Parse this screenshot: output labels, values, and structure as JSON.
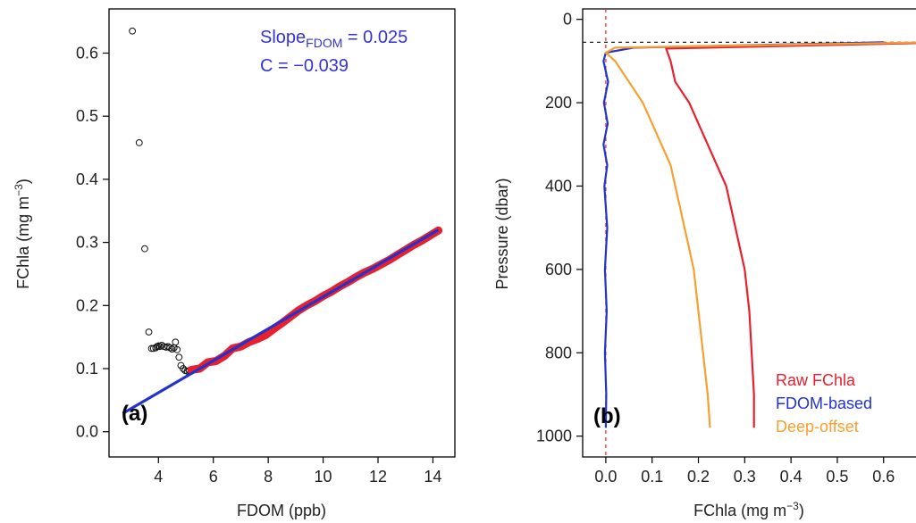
{
  "chart_data": [
    {
      "panel_label": "(a)",
      "type": "scatter",
      "xlabel": "FDOM (ppb)",
      "ylabel": "FChla (mg m",
      "ylabel_sup": "−3",
      "ylabel_close": ")",
      "xlim": [
        2.2,
        14.8
      ],
      "ylim": [
        -0.04,
        0.67
      ],
      "xticks": [
        4,
        6,
        8,
        10,
        12,
        14
      ],
      "xtick_labels": [
        "4",
        "6",
        "8",
        "10",
        "12",
        "14"
      ],
      "yticks": [
        0.0,
        0.1,
        0.2,
        0.3,
        0.4,
        0.5,
        0.6
      ],
      "ytick_labels": [
        "0.0",
        "0.1",
        "0.2",
        "0.3",
        "0.4",
        "0.5",
        "0.6"
      ],
      "annotation_slope_main": "Slope",
      "annotation_slope_sub": "FDOM",
      "annotation_slope_value": " = 0.025",
      "annotation_c": "C = −0.039",
      "annotation_color": "#3333dd",
      "open_points": [
        [
          3.05,
          0.635
        ],
        [
          3.3,
          0.458
        ],
        [
          3.5,
          0.29
        ],
        [
          3.65,
          0.158
        ],
        [
          3.75,
          0.132
        ],
        [
          3.82,
          0.132
        ],
        [
          3.9,
          0.133
        ],
        [
          3.95,
          0.135
        ],
        [
          4.0,
          0.136
        ],
        [
          4.05,
          0.135
        ],
        [
          4.12,
          0.137
        ],
        [
          4.2,
          0.135
        ],
        [
          4.28,
          0.134
        ],
        [
          4.35,
          0.135
        ],
        [
          4.42,
          0.133
        ],
        [
          4.5,
          0.131
        ],
        [
          4.57,
          0.133
        ],
        [
          4.62,
          0.142
        ],
        [
          4.68,
          0.13
        ],
        [
          4.75,
          0.118
        ],
        [
          4.82,
          0.105
        ],
        [
          4.9,
          0.1
        ],
        [
          4.97,
          0.097
        ],
        [
          5.05,
          0.096
        ],
        [
          5.12,
          0.097
        ],
        [
          5.2,
          0.096
        ],
        [
          5.3,
          0.099
        ]
      ],
      "red_series": [
        [
          5.2,
          0.098
        ],
        [
          5.5,
          0.1
        ],
        [
          5.8,
          0.11
        ],
        [
          6.1,
          0.112
        ],
        [
          6.4,
          0.12
        ],
        [
          6.7,
          0.132
        ],
        [
          7.0,
          0.135
        ],
        [
          7.3,
          0.142
        ],
        [
          7.6,
          0.147
        ],
        [
          7.9,
          0.153
        ],
        [
          8.2,
          0.163
        ],
        [
          8.5,
          0.172
        ],
        [
          8.8,
          0.182
        ],
        [
          9.1,
          0.192
        ],
        [
          9.4,
          0.2
        ],
        [
          9.7,
          0.207
        ],
        [
          10.0,
          0.215
        ],
        [
          10.3,
          0.222
        ],
        [
          10.6,
          0.23
        ],
        [
          10.9,
          0.237
        ],
        [
          11.2,
          0.245
        ],
        [
          11.5,
          0.252
        ],
        [
          11.8,
          0.258
        ],
        [
          12.1,
          0.265
        ],
        [
          12.4,
          0.272
        ],
        [
          12.7,
          0.28
        ],
        [
          13.0,
          0.288
        ],
        [
          13.3,
          0.296
        ],
        [
          13.6,
          0.303
        ],
        [
          13.9,
          0.311
        ],
        [
          14.2,
          0.319
        ]
      ],
      "red_color": "#e8202e",
      "fit_line": {
        "x": [
          2.7,
          14.2
        ],
        "y": [
          0.029,
          0.32
        ],
        "color": "#2233cc"
      }
    },
    {
      "panel_label": "(b)",
      "type": "line",
      "xlabel": "FChla (mg m",
      "xlabel_sup": "−3",
      "xlabel_close": ")",
      "ylabel": "Pressure (dbar)",
      "xlim": [
        -0.05,
        0.67
      ],
      "ylim": [
        1050,
        -25
      ],
      "xticks": [
        0.0,
        0.1,
        0.2,
        0.3,
        0.4,
        0.5,
        0.6
      ],
      "xtick_labels": [
        "0.0",
        "0.1",
        "0.2",
        "0.3",
        "0.4",
        "0.5",
        "0.6"
      ],
      "yticks": [
        0,
        200,
        400,
        600,
        800,
        1000
      ],
      "ytick_labels": [
        "0",
        "200",
        "400",
        "600",
        "800",
        "1000"
      ],
      "hline_pressure": 55,
      "vline_fchla": 0,
      "series": [
        {
          "name": "Raw FChla",
          "color": "#e8202e",
          "points": [
            [
              0.75,
              55
            ],
            [
              0.13,
              70
            ],
            [
              0.14,
              100
            ],
            [
              0.15,
              150
            ],
            [
              0.18,
              200
            ],
            [
              0.2,
              250
            ],
            [
              0.22,
              300
            ],
            [
              0.24,
              350
            ],
            [
              0.26,
              400
            ],
            [
              0.27,
              450
            ],
            [
              0.28,
              500
            ],
            [
              0.29,
              550
            ],
            [
              0.3,
              600
            ],
            [
              0.31,
              700
            ],
            [
              0.315,
              800
            ],
            [
              0.32,
              900
            ],
            [
              0.32,
              980
            ]
          ]
        },
        {
          "name": "FDOM-based",
          "color": "#2233cc",
          "points": [
            [
              0.6,
              55
            ],
            [
              0.06,
              68
            ],
            [
              0.0,
              80
            ],
            [
              -0.005,
              100
            ],
            [
              0.005,
              150
            ],
            [
              -0.004,
              200
            ],
            [
              0.004,
              250
            ],
            [
              -0.005,
              300
            ],
            [
              0.003,
              350
            ],
            [
              -0.003,
              400
            ],
            [
              0.003,
              500
            ],
            [
              -0.002,
              600
            ],
            [
              0.002,
              700
            ],
            [
              -0.002,
              800
            ],
            [
              0.001,
              900
            ],
            [
              0.0,
              980
            ]
          ]
        },
        {
          "name": "Deep-offset",
          "color": "#f5a030",
          "points": [
            [
              0.7,
              55
            ],
            [
              0.02,
              68
            ],
            [
              0.0,
              80
            ],
            [
              0.02,
              100
            ],
            [
              0.05,
              150
            ],
            [
              0.08,
              200
            ],
            [
              0.1,
              250
            ],
            [
              0.12,
              300
            ],
            [
              0.14,
              350
            ],
            [
              0.15,
              400
            ],
            [
              0.16,
              450
            ],
            [
              0.17,
              500
            ],
            [
              0.18,
              550
            ],
            [
              0.19,
              600
            ],
            [
              0.2,
              700
            ],
            [
              0.21,
              800
            ],
            [
              0.22,
              900
            ],
            [
              0.225,
              980
            ]
          ]
        }
      ]
    }
  ]
}
